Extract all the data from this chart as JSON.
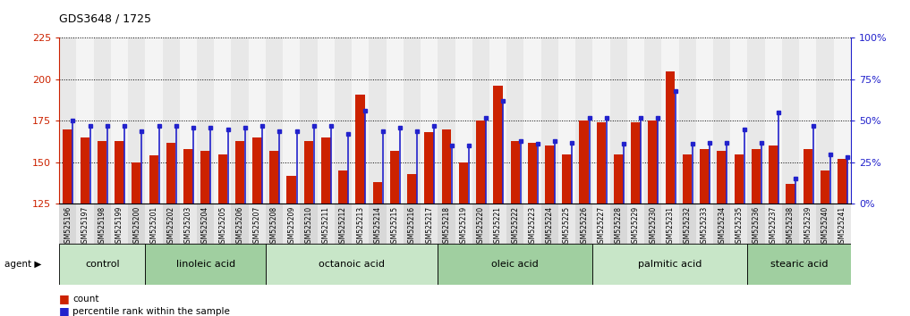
{
  "title": "GDS3648 / 1725",
  "samples": [
    "GSM525196",
    "GSM525197",
    "GSM525198",
    "GSM525199",
    "GSM525200",
    "GSM525201",
    "GSM525202",
    "GSM525203",
    "GSM525204",
    "GSM525205",
    "GSM525206",
    "GSM525207",
    "GSM525208",
    "GSM525209",
    "GSM525210",
    "GSM525211",
    "GSM525212",
    "GSM525213",
    "GSM525214",
    "GSM525215",
    "GSM525216",
    "GSM525217",
    "GSM525218",
    "GSM525219",
    "GSM525220",
    "GSM525221",
    "GSM525222",
    "GSM525223",
    "GSM525224",
    "GSM525225",
    "GSM525226",
    "GSM525227",
    "GSM525228",
    "GSM525229",
    "GSM525230",
    "GSM525231",
    "GSM525232",
    "GSM525233",
    "GSM525234",
    "GSM525235",
    "GSM525236",
    "GSM525237",
    "GSM525238",
    "GSM525239",
    "GSM525240",
    "GSM525241"
  ],
  "red_values": [
    170,
    165,
    163,
    163,
    150,
    154,
    162,
    158,
    157,
    155,
    163,
    165,
    157,
    142,
    163,
    165,
    145,
    191,
    138,
    157,
    143,
    168,
    170,
    150,
    175,
    196,
    163,
    162,
    160,
    155,
    175,
    174,
    155,
    174,
    175,
    205,
    155,
    158,
    157,
    155,
    158,
    160,
    137,
    158,
    145,
    152
  ],
  "blue_pct": [
    50,
    47,
    47,
    47,
    44,
    47,
    47,
    46,
    46,
    45,
    46,
    47,
    44,
    44,
    47,
    47,
    42,
    56,
    44,
    46,
    44,
    47,
    35,
    35,
    52,
    62,
    38,
    36,
    38,
    37,
    52,
    52,
    36,
    52,
    52,
    68,
    36,
    37,
    37,
    45,
    37,
    55,
    15,
    47,
    30,
    28
  ],
  "groups": [
    {
      "label": "control",
      "start": 0,
      "end": 5,
      "color": "#c8e6c8"
    },
    {
      "label": "linoleic acid",
      "start": 5,
      "end": 12,
      "color": "#a0cfa0"
    },
    {
      "label": "octanoic acid",
      "start": 12,
      "end": 22,
      "color": "#c8e6c8"
    },
    {
      "label": "oleic acid",
      "start": 22,
      "end": 31,
      "color": "#a0cfa0"
    },
    {
      "label": "palmitic acid",
      "start": 31,
      "end": 40,
      "color": "#c8e6c8"
    },
    {
      "label": "stearic acid",
      "start": 40,
      "end": 46,
      "color": "#a0cfa0"
    }
  ],
  "ymin": 125,
  "ymax": 225,
  "yticks_left": [
    125,
    150,
    175,
    200,
    225
  ],
  "yticks_right": [
    0,
    25,
    50,
    75,
    100
  ],
  "bar_color": "#cc2200",
  "blue_color": "#2222cc",
  "tick_bg_colors": [
    "#d8d8d8",
    "#e8e8e8"
  ],
  "legend_count": "count",
  "legend_pct": "percentile rank within the sample"
}
